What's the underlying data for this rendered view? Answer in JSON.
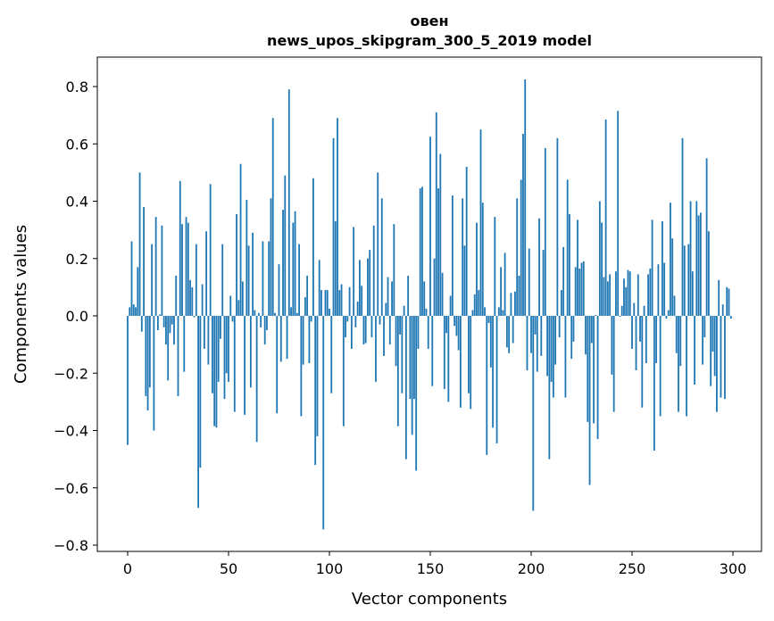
{
  "chart_data": {
    "type": "bar",
    "title": "овен",
    "subtitle": "news_upos_skipgram_300_5_2019 model",
    "xlabel": "Vector components",
    "ylabel": "Components values",
    "xlim": [
      -15,
      315
    ],
    "ylim": [
      -0.82,
      0.9
    ],
    "grid": false,
    "bar_color": "#1f77b4",
    "x_ticks": [
      0,
      50,
      100,
      150,
      200,
      250,
      300
    ],
    "x_tick_labels": [
      "0",
      "50",
      "100",
      "150",
      "200",
      "250",
      "300"
    ],
    "y_ticks": [
      -0.8,
      -0.6,
      -0.4,
      -0.2,
      0.0,
      0.2,
      0.4,
      0.6,
      0.8
    ],
    "y_tick_labels": [
      "−0.8",
      "−0.6",
      "−0.4",
      "−0.2",
      "0.0",
      "0.2",
      "0.4",
      "0.6",
      "0.8"
    ],
    "values": [
      -0.45,
      0.03,
      0.26,
      0.04,
      0.03,
      0.17,
      0.5,
      -0.055,
      0.38,
      -0.28,
      -0.33,
      -0.25,
      0.25,
      -0.4,
      0.345,
      -0.05,
      0.005,
      0.315,
      -0.04,
      -0.1,
      -0.225,
      -0.06,
      -0.03,
      -0.1,
      0.14,
      -0.28,
      0.47,
      0.32,
      -0.195,
      0.345,
      0.325,
      0.125,
      0.1,
      -0.005,
      0.25,
      -0.67,
      -0.53,
      0.11,
      -0.115,
      0.295,
      -0.17,
      0.46,
      -0.27,
      -0.385,
      -0.39,
      -0.23,
      -0.08,
      0.25,
      -0.29,
      -0.2,
      -0.23,
      0.07,
      -0.02,
      -0.335,
      0.355,
      0.055,
      0.53,
      0.12,
      -0.345,
      0.405,
      0.245,
      -0.25,
      0.29,
      0.02,
      -0.44,
      0.01,
      -0.04,
      0.26,
      -0.1,
      -0.05,
      0.26,
      0.41,
      0.69,
      0.01,
      -0.34,
      0.18,
      -0.16,
      0.37,
      0.49,
      -0.15,
      0.79,
      0.03,
      0.325,
      0.365,
      0.01,
      0.25,
      -0.35,
      -0.17,
      0.065,
      0.14,
      -0.165,
      -0.02,
      0.48,
      -0.52,
      -0.42,
      0.195,
      0.09,
      -0.745,
      0.09,
      0.09,
      0.025,
      -0.27,
      0.62,
      0.33,
      0.69,
      0.09,
      0.11,
      -0.385,
      -0.075,
      -0.02,
      0.1,
      -0.115,
      0.31,
      -0.04,
      0.05,
      0.195,
      0.105,
      -0.1,
      -0.095,
      0.2,
      0.23,
      -0.075,
      0.315,
      -0.23,
      0.5,
      -0.03,
      0.41,
      -0.14,
      0.045,
      0.135,
      -0.1,
      0.12,
      0.32,
      -0.175,
      -0.385,
      -0.065,
      -0.27,
      0.035,
      -0.5,
      0.14,
      -0.29,
      -0.415,
      -0.29,
      -0.54,
      -0.115,
      0.445,
      0.45,
      0.12,
      0.025,
      -0.115,
      0.625,
      -0.245,
      0.2,
      0.71,
      0.445,
      0.565,
      0.15,
      -0.255,
      -0.06,
      -0.3,
      0.07,
      0.42,
      -0.035,
      -0.07,
      -0.12,
      -0.32,
      0.41,
      0.245,
      0.52,
      -0.27,
      -0.325,
      0.02,
      0.075,
      0.325,
      0.09,
      0.65,
      0.395,
      0.03,
      -0.485,
      -0.025,
      -0.18,
      -0.39,
      0.345,
      -0.445,
      0.03,
      0.17,
      0.02,
      0.22,
      -0.11,
      -0.13,
      0.08,
      -0.095,
      0.085,
      0.41,
      0.14,
      0.475,
      0.635,
      0.825,
      -0.19,
      0.235,
      -0.13,
      -0.68,
      -0.065,
      -0.195,
      0.34,
      -0.14,
      0.23,
      0.585,
      -0.21,
      -0.5,
      -0.23,
      -0.285,
      -0.17,
      0.62,
      -0.075,
      0.09,
      0.24,
      -0.285,
      0.475,
      0.355,
      -0.15,
      -0.09,
      0.17,
      0.335,
      0.165,
      0.185,
      0.19,
      -0.135,
      -0.37,
      -0.59,
      -0.095,
      -0.375,
      0.003,
      -0.43,
      0.4,
      0.325,
      0.135,
      0.685,
      0.12,
      0.145,
      -0.205,
      -0.335,
      0.155,
      0.715,
      -0.003,
      0.035,
      0.13,
      0.1,
      0.16,
      0.155,
      -0.115,
      0.045,
      -0.19,
      0.145,
      -0.09,
      -0.32,
      0.035,
      -0.165,
      0.145,
      0.165,
      0.335,
      -0.47,
      -0.165,
      0.18,
      -0.35,
      0.33,
      0.185,
      -0.01,
      0.02,
      0.395,
      0.27,
      0.07,
      -0.13,
      -0.335,
      -0.175,
      0.62,
      0.245,
      -0.35,
      0.25,
      0.4,
      0.155,
      -0.24,
      0.4,
      0.35,
      0.36,
      -0.17,
      -0.075,
      0.55,
      0.295,
      -0.245,
      -0.125,
      -0.21,
      -0.335,
      0.125,
      -0.285,
      0.04,
      -0.29,
      0.1,
      0.095,
      -0.01
    ]
  }
}
